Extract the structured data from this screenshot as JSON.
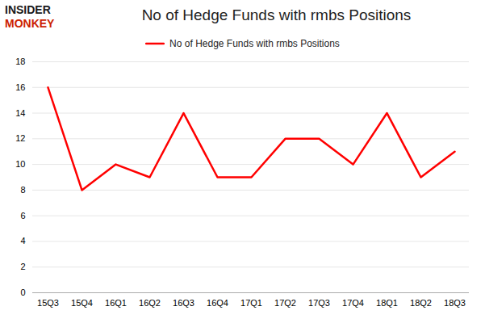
{
  "chart_data": {
    "type": "line",
    "title": "No of Hedge Funds with rmbs Positions",
    "annotations": [
      "INSIDER",
      "MONKEY"
    ],
    "categories": [
      "15Q3",
      "15Q4",
      "16Q1",
      "16Q2",
      "16Q3",
      "16Q4",
      "17Q1",
      "17Q2",
      "17Q3",
      "17Q4",
      "18Q1",
      "18Q2",
      "18Q3"
    ],
    "series": [
      {
        "name": "No of Hedge Funds with rmbs Positions",
        "color": "#FF0000",
        "values": [
          16,
          8,
          10,
          9,
          14,
          9,
          9,
          12,
          12,
          10,
          14,
          9,
          11
        ]
      }
    ],
    "ylim": [
      0,
      18
    ],
    "yticks": [
      0,
      2,
      4,
      6,
      8,
      10,
      12,
      14,
      16,
      18
    ],
    "grid": true,
    "legend": "top"
  }
}
